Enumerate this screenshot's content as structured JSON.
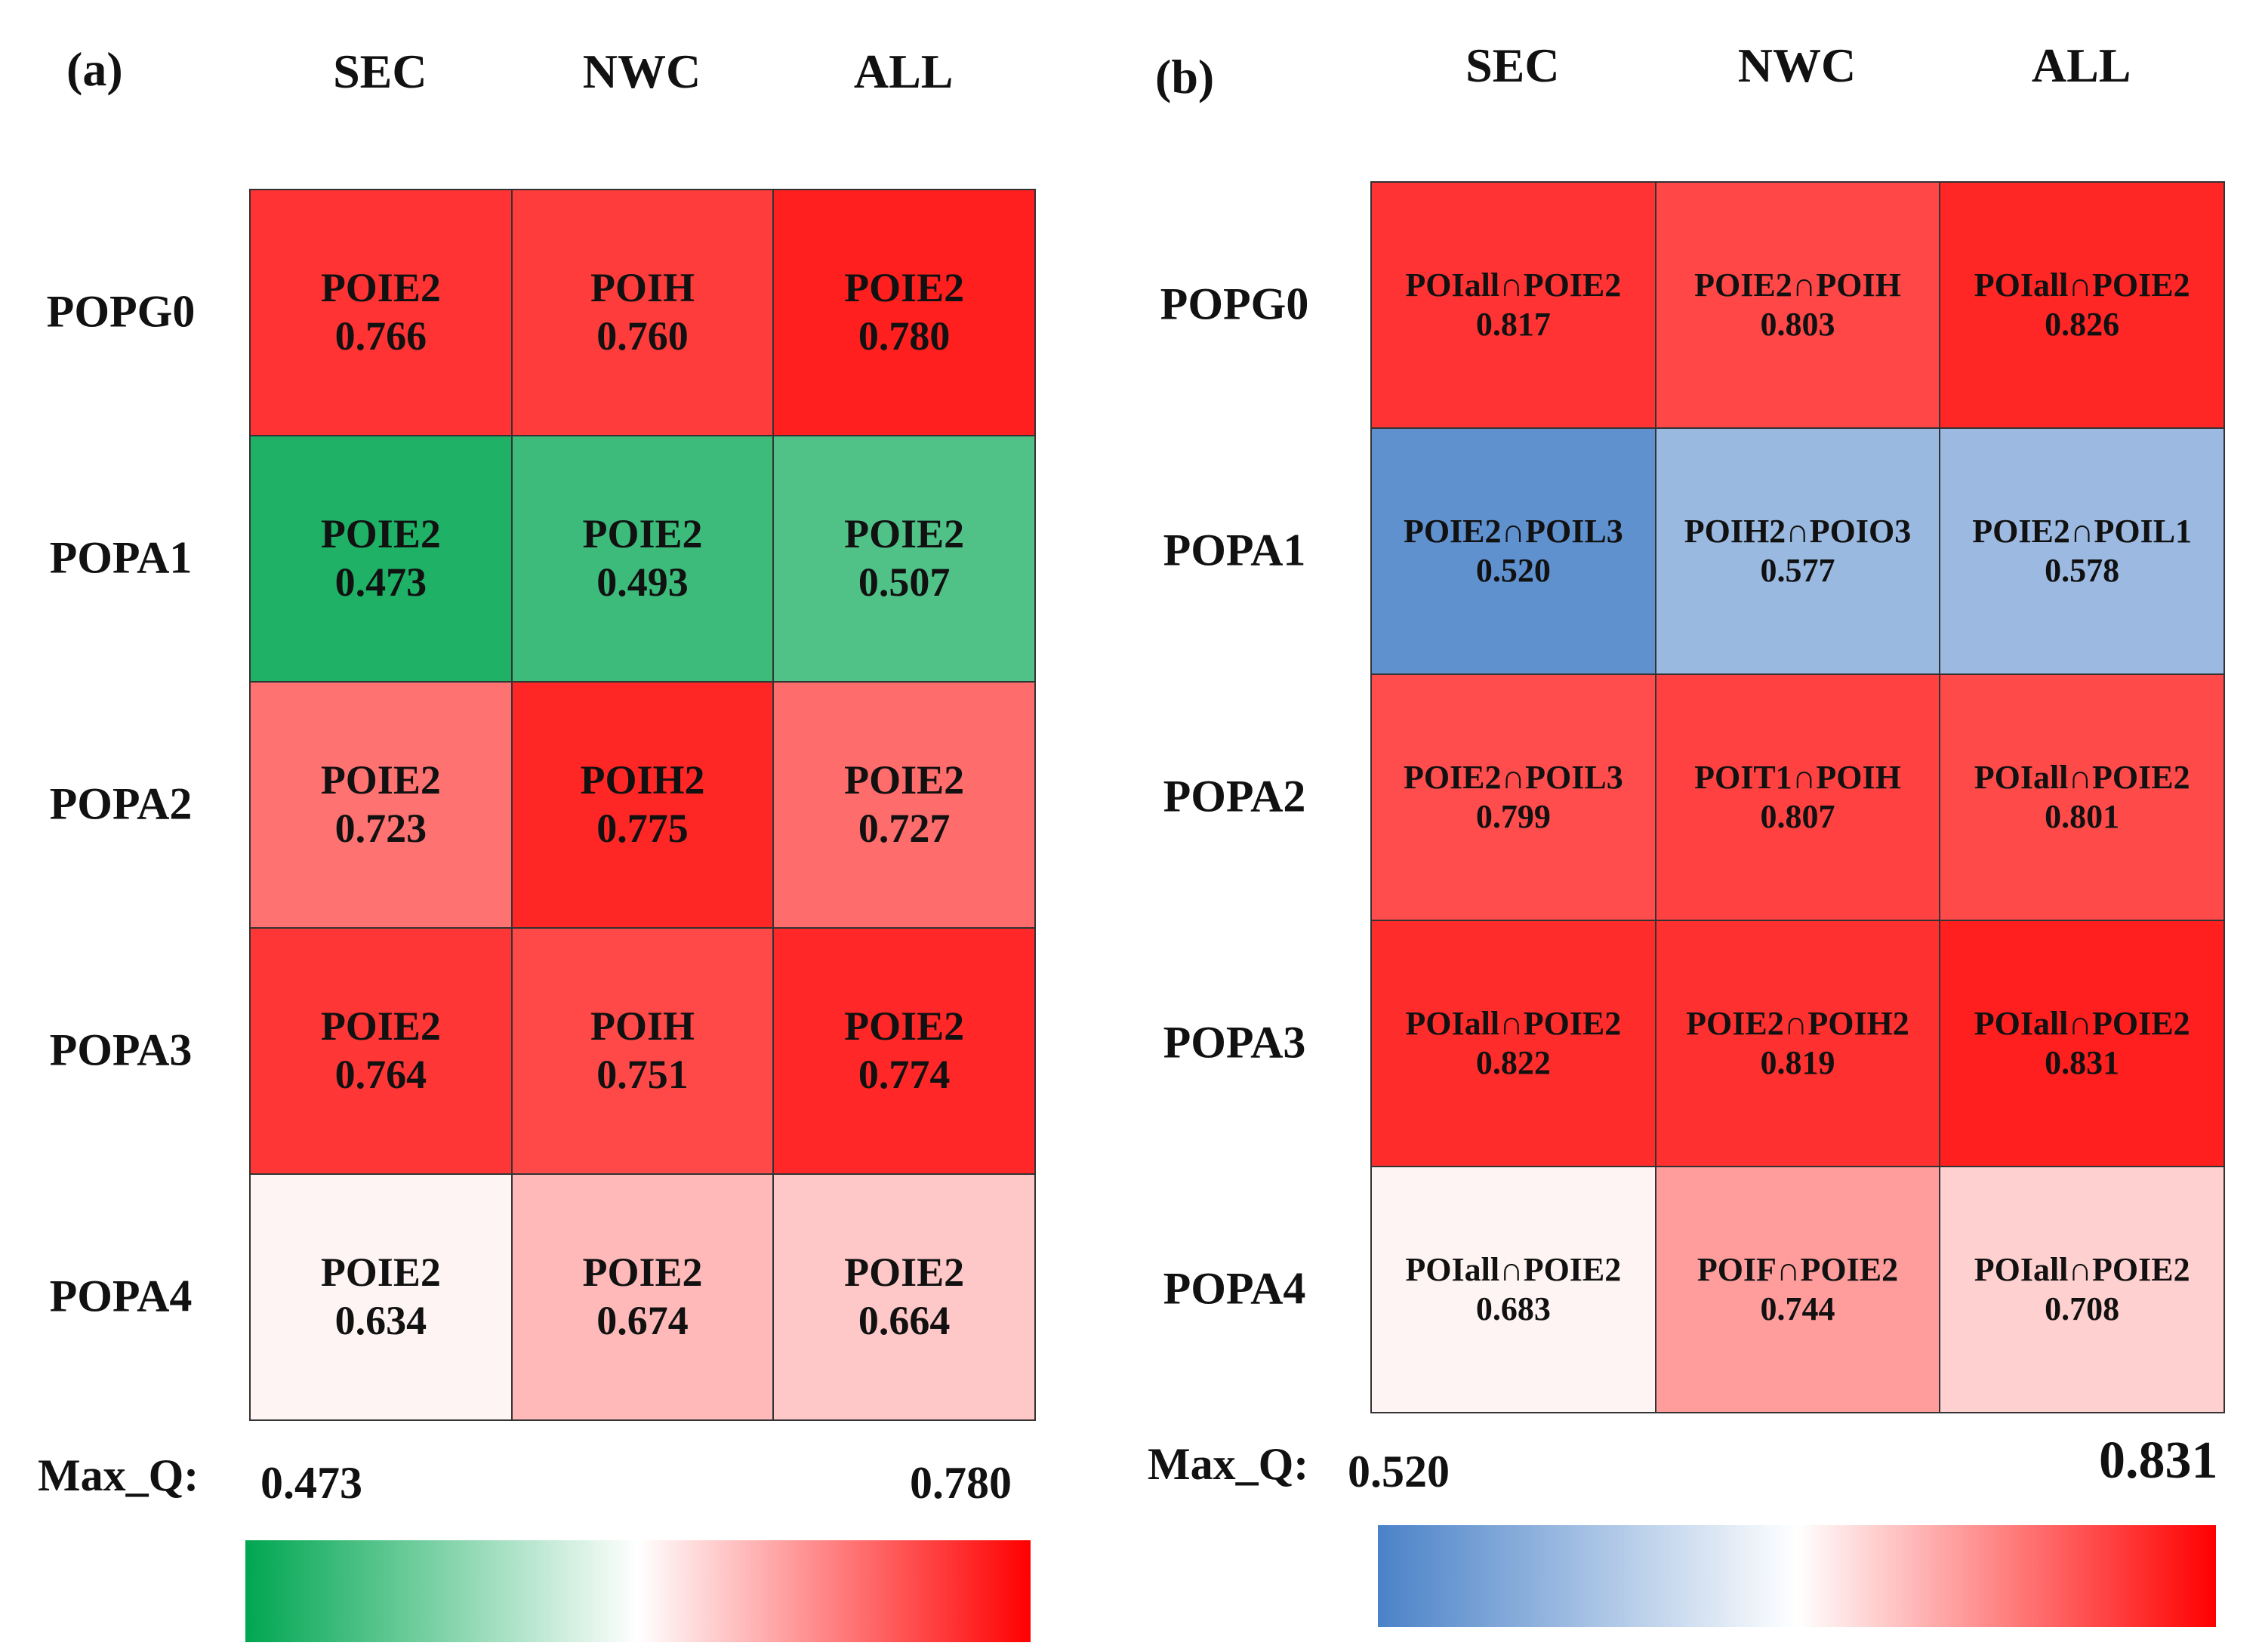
{
  "chart_data": [
    {
      "type": "heatmap",
      "panel_label": "(a)",
      "columns": [
        "SEC",
        "NWC",
        "ALL"
      ],
      "rows": [
        "POPG0",
        "POPA1",
        "POPA2",
        "POPA3",
        "POPA4"
      ],
      "cells": [
        [
          {
            "label": "POIE2",
            "value": 0.766
          },
          {
            "label": "POIH",
            "value": 0.76
          },
          {
            "label": "POIE2",
            "value": 0.78
          }
        ],
        [
          {
            "label": "POIE2",
            "value": 0.473
          },
          {
            "label": "POIE2",
            "value": 0.493
          },
          {
            "label": "POIE2",
            "value": 0.507
          }
        ],
        [
          {
            "label": "POIE2",
            "value": 0.723
          },
          {
            "label": "POIH2",
            "value": 0.775
          },
          {
            "label": "POIE2",
            "value": 0.727
          }
        ],
        [
          {
            "label": "POIE2",
            "value": 0.764
          },
          {
            "label": "POIH",
            "value": 0.751
          },
          {
            "label": "POIE2",
            "value": 0.774
          }
        ],
        [
          {
            "label": "POIE2",
            "value": 0.634
          },
          {
            "label": "POIE2",
            "value": 0.674
          },
          {
            "label": "POIE2",
            "value": 0.664
          }
        ]
      ],
      "scale_title": "Max_Q:",
      "scale_min": 0.473,
      "scale_max": 0.78,
      "scale_min_label": "0.473",
      "scale_max_label": "0.780",
      "colormap": {
        "low": "#00a651",
        "mid": "#ffffff",
        "high": "#ff0000"
      }
    },
    {
      "type": "heatmap",
      "panel_label": "(b)",
      "columns": [
        "SEC",
        "NWC",
        "ALL"
      ],
      "rows": [
        "POPG0",
        "POPA1",
        "POPA2",
        "POPA3",
        "POPA4"
      ],
      "cells": [
        [
          {
            "label": "POIall∩POIE2",
            "value": 0.817
          },
          {
            "label": "POIE2∩POIH",
            "value": 0.803
          },
          {
            "label": "POIall∩POIE2",
            "value": 0.826
          }
        ],
        [
          {
            "label": "POIE2∩POIL3",
            "value": 0.52
          },
          {
            "label": "POIH2∩POIO3",
            "value": 0.577
          },
          {
            "label": "POIE2∩POIL1",
            "value": 0.578
          }
        ],
        [
          {
            "label": "POIE2∩POIL3",
            "value": 0.799
          },
          {
            "label": "POIT1∩POIH",
            "value": 0.807
          },
          {
            "label": "POIall∩POIE2",
            "value": 0.801
          }
        ],
        [
          {
            "label": "POIall∩POIE2",
            "value": 0.822
          },
          {
            "label": "POIE2∩POIH2",
            "value": 0.819
          },
          {
            "label": "POIall∩POIE2",
            "value": 0.831
          }
        ],
        [
          {
            "label": "POIall∩POIE2",
            "value": 0.683
          },
          {
            "label": "POIF∩POIE2",
            "value": 0.744
          },
          {
            "label": "POIall∩POIE2",
            "value": 0.708
          }
        ]
      ],
      "scale_title": "Max_Q:",
      "scale_min": 0.52,
      "scale_max": 0.831,
      "scale_min_label": "0.520",
      "scale_max_label": "0.831",
      "colormap": {
        "low": "#4a82c8",
        "mid": "#ffffff",
        "high": "#ff0000"
      }
    }
  ]
}
